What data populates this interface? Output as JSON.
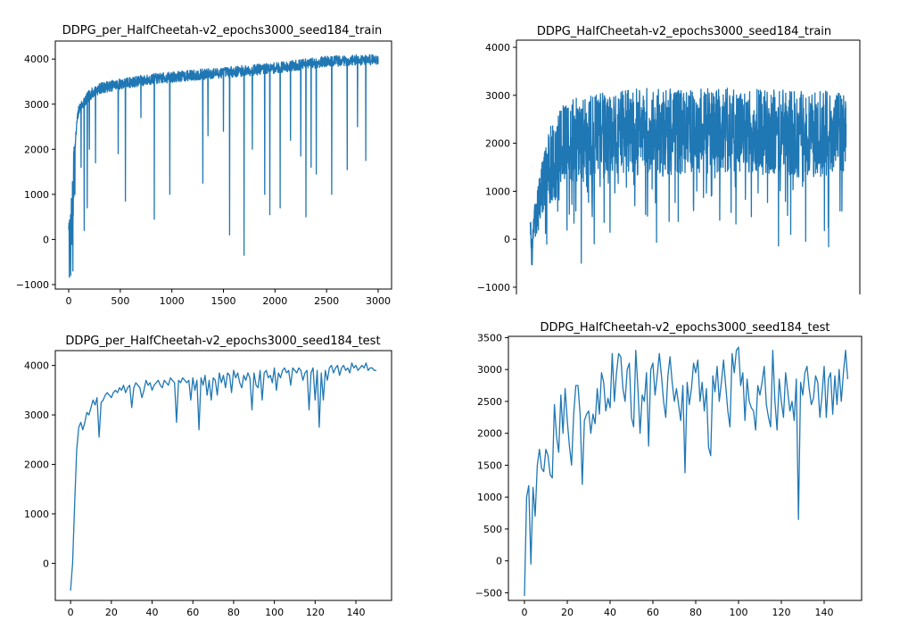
{
  "colors": {
    "series": "#1f77b4",
    "axis": "#000000",
    "background": "#ffffff"
  },
  "chart_data": [
    {
      "type": "line",
      "title": "DDPG_per_HalfCheetah-v2_epochs3000_seed184_train",
      "xlim": [
        -130,
        3130
      ],
      "ylim": [
        -1100,
        4400
      ],
      "xticks": [
        0,
        500,
        1000,
        1500,
        2000,
        2500,
        3000
      ],
      "yticks": [
        -1000,
        0,
        1000,
        2000,
        3000,
        4000
      ],
      "kind": "train",
      "trend_x": [
        0,
        20,
        40,
        60,
        80,
        100,
        150,
        200,
        300,
        500,
        800,
        1000,
        1500,
        2000,
        2500,
        3000
      ],
      "trend_y": [
        -300,
        100,
        800,
        2000,
        2600,
        2900,
        3050,
        3200,
        3350,
        3450,
        3550,
        3600,
        3700,
        3800,
        3950,
        4000
      ],
      "noise": 120,
      "dips": [
        [
          20,
          -800
        ],
        [
          40,
          -700
        ],
        [
          60,
          1000
        ],
        [
          120,
          1600
        ],
        [
          150,
          200
        ],
        [
          180,
          700
        ],
        [
          200,
          2000
        ],
        [
          260,
          1700
        ],
        [
          480,
          1900
        ],
        [
          550,
          850
        ],
        [
          700,
          2700
        ],
        [
          830,
          450
        ],
        [
          980,
          1000
        ],
        [
          1300,
          1250
        ],
        [
          1350,
          2300
        ],
        [
          1500,
          2400
        ],
        [
          1560,
          100
        ],
        [
          1700,
          -350
        ],
        [
          1780,
          2000
        ],
        [
          1900,
          1000
        ],
        [
          1950,
          550
        ],
        [
          2050,
          700
        ],
        [
          2150,
          2200
        ],
        [
          2250,
          1850
        ],
        [
          2300,
          500
        ],
        [
          2350,
          1600
        ],
        [
          2400,
          1450
        ],
        [
          2550,
          1000
        ],
        [
          2700,
          1550
        ],
        [
          2800,
          2500
        ],
        [
          2880,
          1750
        ]
      ],
      "seed": 7
    },
    {
      "type": "line",
      "title": "DDPG_HalfCheetah-v2_epochs3000_seed184_train",
      "xlim": [
        -130,
        3130
      ],
      "ylim": [
        -1150,
        4150
      ],
      "xticks": [],
      "yticks": [
        -1000,
        0,
        1000,
        2000,
        3000,
        4000
      ],
      "kind": "noisy",
      "trend_x": [
        0,
        50,
        100,
        200,
        300,
        500,
        800,
        1000,
        1500,
        2000,
        2500,
        3000
      ],
      "trend_y": [
        0,
        400,
        1000,
        1600,
        1900,
        2100,
        2200,
        2250,
        2250,
        2250,
        2200,
        2200
      ],
      "noise": 900,
      "seed": 13
    },
    {
      "type": "line",
      "title": "DDPG_per_HalfCheetah-v2_epochs3000_seed184_test",
      "xlim": [
        -7.5,
        157.5
      ],
      "ylim": [
        -750,
        4300
      ],
      "xticks": [
        0,
        20,
        40,
        60,
        80,
        100,
        120,
        140
      ],
      "yticks": [
        0,
        1000,
        2000,
        3000,
        4000
      ],
      "kind": "values",
      "values": [
        -550,
        0,
        1200,
        2300,
        2750,
        2850,
        2700,
        2850,
        3050,
        3000,
        3150,
        3300,
        3200,
        3350,
        2550,
        3250,
        3300,
        3400,
        3450,
        3400,
        3350,
        3450,
        3500,
        3450,
        3550,
        3500,
        3600,
        3450,
        3550,
        3600,
        3150,
        3550,
        3650,
        3600,
        3550,
        3350,
        3500,
        3700,
        3600,
        3650,
        3500,
        3600,
        3650,
        3700,
        3600,
        3550,
        3700,
        3650,
        3600,
        3750,
        3700,
        3650,
        2850,
        3700,
        3650,
        3750,
        3700,
        3650,
        3700,
        3300,
        3750,
        3500,
        3700,
        2700,
        3750,
        3600,
        3800,
        3400,
        3700,
        3300,
        3750,
        3700,
        3400,
        3850,
        3650,
        3800,
        3550,
        3850,
        3800,
        3450,
        3900,
        3750,
        3850,
        3650,
        3550,
        3800,
        3700,
        3850,
        3750,
        3100,
        3850,
        3600,
        3550,
        3900,
        3300,
        3850,
        3900,
        3750,
        3800,
        3650,
        3950,
        3500,
        3850,
        3750,
        3900,
        3950,
        3850,
        3900,
        3600,
        3950,
        3900,
        3850,
        3950,
        3900,
        3700,
        3850,
        3900,
        3100,
        3850,
        3950,
        3300,
        3900,
        2750,
        3850,
        3300,
        3900,
        3700,
        3950,
        4000,
        3850,
        3950,
        4000,
        3800,
        3950,
        4000,
        3900,
        3950,
        3850,
        4050,
        3950,
        4000,
        3900,
        3950,
        4000,
        3950,
        4050,
        3900,
        3950,
        3950,
        3900,
        3900
      ]
    },
    {
      "type": "line",
      "title": "DDPG_HalfCheetah-v2_epochs3000_seed184_test",
      "xlim": [
        -7.5,
        157.5
      ],
      "ylim": [
        -620,
        3520
      ],
      "xticks": [
        0,
        20,
        40,
        60,
        80,
        100,
        120,
        140
      ],
      "yticks": [
        -500,
        0,
        500,
        1000,
        1500,
        2000,
        2500,
        3000,
        3500
      ],
      "kind": "values",
      "values": [
        -550,
        1000,
        1180,
        -50,
        1150,
        700,
        1500,
        1750,
        1450,
        1400,
        1750,
        1650,
        1350,
        1300,
        2450,
        1950,
        1700,
        2600,
        2000,
        2700,
        2200,
        1800,
        1500,
        2300,
        2750,
        2750,
        2300,
        1200,
        2200,
        2300,
        2350,
        2000,
        2300,
        2150,
        2700,
        2300,
        2950,
        2800,
        2350,
        2550,
        2400,
        3250,
        2500,
        2950,
        3250,
        3200,
        2700,
        2500,
        3000,
        3100,
        2250,
        2100,
        3300,
        2700,
        2000,
        2600,
        2500,
        2950,
        1800,
        3000,
        3100,
        2600,
        2900,
        3250,
        2900,
        2500,
        2250,
        2900,
        3200,
        2800,
        2500,
        2700,
        2450,
        2200,
        2750,
        1380,
        2800,
        2450,
        2700,
        3100,
        2950,
        3150,
        2500,
        2800,
        2350,
        2700,
        1780,
        1650,
        2900,
        2650,
        3050,
        2500,
        2800,
        3150,
        2750,
        2350,
        2100,
        3250,
        2950,
        3300,
        3350,
        2750,
        2950,
        2200,
        2850,
        2500,
        2400,
        2350,
        2050,
        2750,
        2600,
        2800,
        3050,
        2450,
        2250,
        2100,
        3300,
        2500,
        2050,
        2850,
        2500,
        2250,
        2950,
        2650,
        2350,
        2500,
        2200,
        2850,
        650,
        2800,
        2600,
        2950,
        3050,
        2700,
        2450,
        2550,
        2900,
        2800,
        2250,
        2600,
        3050,
        2250,
        2850,
        2950,
        2300,
        2900,
        2450,
        3000,
        2500,
        2950,
        3300,
        2850
      ]
    }
  ]
}
